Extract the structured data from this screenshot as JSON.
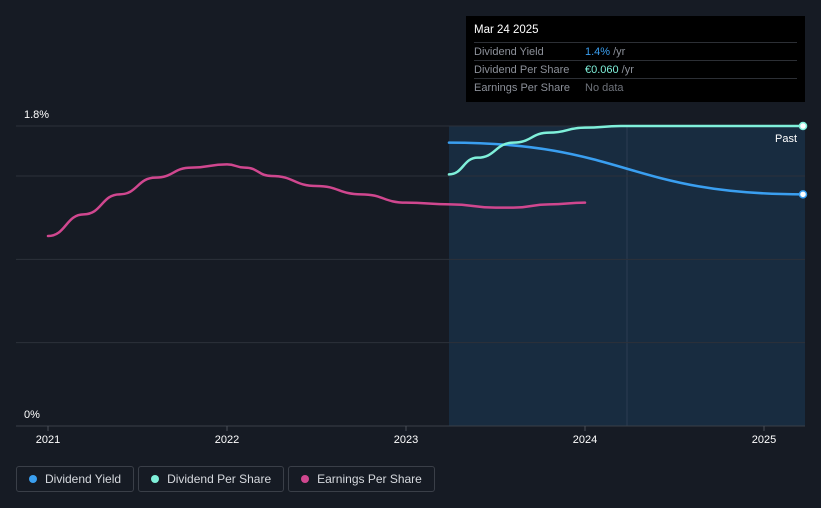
{
  "tooltip": {
    "date": "Mar 24 2025",
    "rows": [
      {
        "label": "Dividend Yield",
        "value": "1.4%",
        "unit": "/yr"
      },
      {
        "label": "Dividend Per Share",
        "value": "€0.060",
        "unit": "/yr"
      },
      {
        "label": "Earnings Per Share",
        "value": "No data"
      }
    ]
  },
  "legend": [
    {
      "label": "Dividend Yield",
      "color": "#3a9ff0"
    },
    {
      "label": "Dividend Per Share",
      "color": "#7ff0da"
    },
    {
      "label": "Earnings Per Share",
      "color": "#d0478f"
    }
  ],
  "colors": {
    "background": "#161b24",
    "forecast_fill": "#1b3a58",
    "grid": "#2c313a"
  },
  "chart_data": {
    "type": "line",
    "title": "",
    "xlabel": "",
    "ylabel": "",
    "x_ticks": [
      "2021",
      "2022",
      "2023",
      "2024",
      "2025"
    ],
    "y_ticks": [
      "0%",
      "1.8%"
    ],
    "xlim": [
      2020.82,
      2025.22
    ],
    "ylim": [
      0,
      1.8
    ],
    "grid": true,
    "annotation": "Past",
    "series": [
      {
        "name": "Dividend Yield",
        "color": "#3a9ff0",
        "x": [
          2023.24,
          2025.22
        ],
        "y": [
          1.7,
          1.39
        ]
      },
      {
        "name": "Dividend Per Share",
        "color": "#7ff0da",
        "x": [
          2023.24,
          2023.4,
          2023.6,
          2023.8,
          2024.0,
          2024.2,
          2024.5,
          2025.0,
          2025.22
        ],
        "y": [
          1.51,
          1.61,
          1.7,
          1.76,
          1.79,
          1.8,
          1.8,
          1.8,
          1.8
        ]
      },
      {
        "name": "Earnings Per Share",
        "color": "#d0478f",
        "x": [
          2021.0,
          2021.2,
          2021.4,
          2021.6,
          2021.8,
          2022.0,
          2022.1,
          2022.25,
          2022.5,
          2022.75,
          2023.0,
          2023.25,
          2023.5,
          2023.6,
          2023.8,
          2024.0
        ],
        "y": [
          1.14,
          1.27,
          1.39,
          1.49,
          1.55,
          1.57,
          1.55,
          1.5,
          1.44,
          1.39,
          1.34,
          1.33,
          1.31,
          1.31,
          1.33,
          1.34
        ]
      }
    ]
  }
}
